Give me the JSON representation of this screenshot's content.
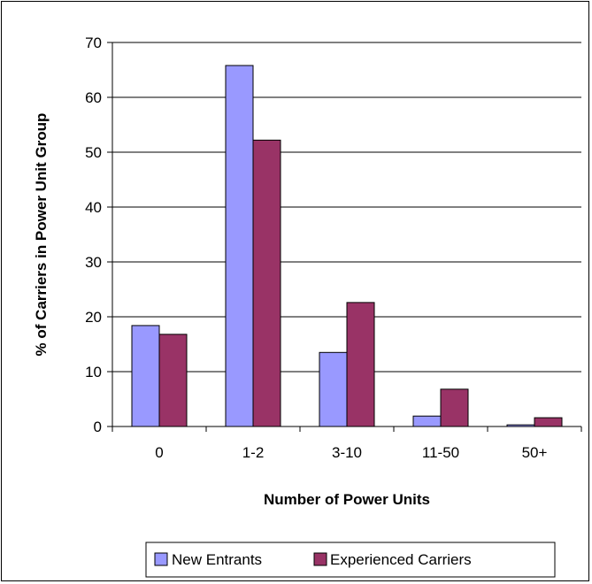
{
  "chart_data": {
    "type": "bar",
    "title": "",
    "xlabel": "Number of Power Units",
    "ylabel": "% of Carriers in Power Unit Group",
    "categories": [
      "0",
      "1-2",
      "3-10",
      "11-50",
      "50+"
    ],
    "series": [
      {
        "name": "New Entrants",
        "color": "#9999ff",
        "values": [
          18.4,
          65.8,
          13.5,
          1.9,
          0.3
        ]
      },
      {
        "name": "Experienced Carriers",
        "color": "#993366",
        "values": [
          16.8,
          52.2,
          22.6,
          6.8,
          1.6
        ]
      }
    ],
    "ylim": [
      0,
      70
    ],
    "yticks": [
      "0",
      "10",
      "20",
      "30",
      "40",
      "50",
      "60",
      "70"
    ],
    "grid": true,
    "legend": "bottom"
  }
}
